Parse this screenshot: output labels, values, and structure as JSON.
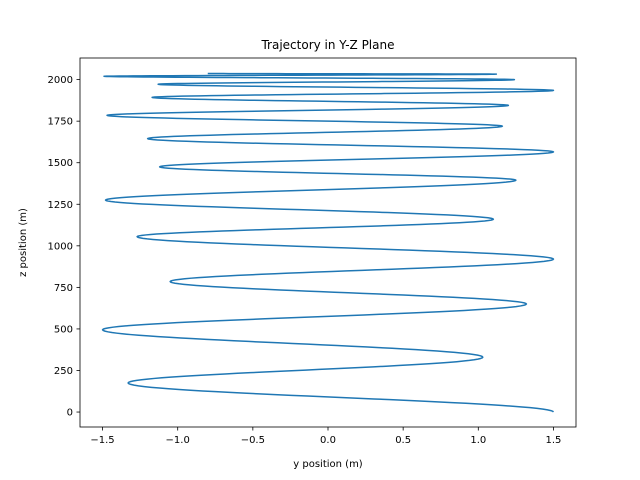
{
  "chart_data": {
    "type": "line",
    "title": "Trajectory in Y-Z Plane",
    "xlabel": "y position (m)",
    "ylabel": "z position (m)",
    "xlim": [
      -1.65,
      1.65
    ],
    "ylim": [
      -90,
      2130
    ],
    "xticks": [
      -1.5,
      -1.0,
      -0.5,
      0.0,
      0.5,
      1.0,
      1.5
    ],
    "xtick_labels": [
      "−1.5",
      "−1.0",
      "−0.5",
      "0.0",
      "0.5",
      "1.0",
      "1.5"
    ],
    "yticks": [
      0,
      250,
      500,
      750,
      1000,
      1250,
      1500,
      1750,
      2000
    ],
    "ytick_labels": [
      "0",
      "250",
      "500",
      "750",
      "1000",
      "1250",
      "1500",
      "1750",
      "2000"
    ],
    "grid": false,
    "series": [
      {
        "color": "#1f77b4",
        "turning_points": [
          {
            "y": 1.5,
            "z": 0
          },
          {
            "y": -1.33,
            "z": 175
          },
          {
            "y": 1.03,
            "z": 330
          },
          {
            "y": -1.5,
            "z": 495
          },
          {
            "y": 1.32,
            "z": 650
          },
          {
            "y": -1.05,
            "z": 785
          },
          {
            "y": 1.5,
            "z": 920
          },
          {
            "y": -1.27,
            "z": 1055
          },
          {
            "y": 1.1,
            "z": 1160
          },
          {
            "y": -1.48,
            "z": 1275
          },
          {
            "y": 1.25,
            "z": 1395
          },
          {
            "y": -1.12,
            "z": 1475
          },
          {
            "y": 1.5,
            "z": 1565
          },
          {
            "y": -1.2,
            "z": 1645
          },
          {
            "y": 1.16,
            "z": 1720
          },
          {
            "y": -1.47,
            "z": 1785
          },
          {
            "y": 1.2,
            "z": 1845
          },
          {
            "y": -1.17,
            "z": 1893
          },
          {
            "y": 1.5,
            "z": 1935
          },
          {
            "y": -1.13,
            "z": 1972
          },
          {
            "y": 1.24,
            "z": 2000
          },
          {
            "y": -1.49,
            "z": 2020
          },
          {
            "y": 1.12,
            "z": 2033
          },
          {
            "y": -0.8,
            "z": 2037
          }
        ]
      }
    ]
  }
}
